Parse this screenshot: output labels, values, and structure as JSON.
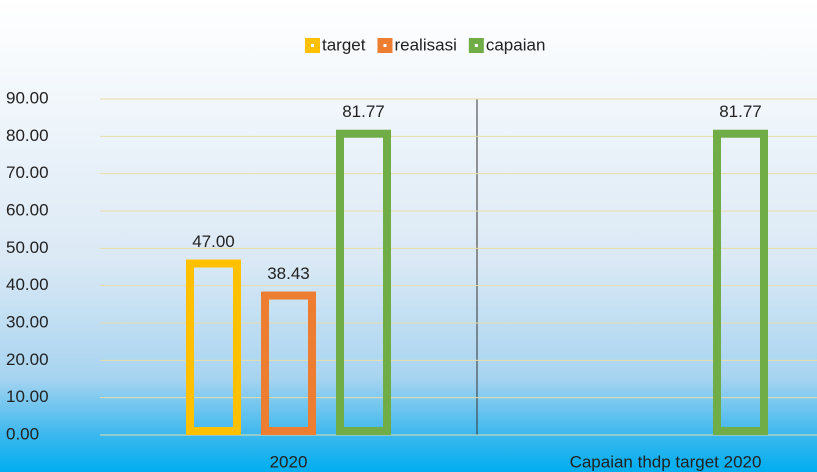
{
  "chart_data": {
    "type": "bar",
    "categories": [
      "2020",
      "Capaian thdp target 2020"
    ],
    "series": [
      {
        "name": "target",
        "color": "#FFC000",
        "values": [
          47.0,
          null
        ],
        "value_labels": [
          "47.00",
          null
        ]
      },
      {
        "name": "realisasi",
        "color": "#ED7D31",
        "values": [
          38.43,
          null
        ],
        "value_labels": [
          "38.43",
          null
        ]
      },
      {
        "name": "capaian",
        "color": "#70AD47",
        "values": [
          81.77,
          81.77
        ],
        "value_labels": [
          "81.77",
          "81.77"
        ]
      }
    ],
    "ylim": [
      0,
      90
    ],
    "yticks": [
      {
        "value": 0,
        "label": "0.00"
      },
      {
        "value": 10,
        "label": "10.00"
      },
      {
        "value": 20,
        "label": "20.00"
      },
      {
        "value": 30,
        "label": "30.00"
      },
      {
        "value": 40,
        "label": "40.00"
      },
      {
        "value": 50,
        "label": "50.00"
      },
      {
        "value": 60,
        "label": "60.00"
      },
      {
        "value": 70,
        "label": "70.00"
      },
      {
        "value": 80,
        "label": "80.00"
      },
      {
        "value": 90,
        "label": "90.00"
      }
    ],
    "grid": true,
    "legend": "top"
  }
}
